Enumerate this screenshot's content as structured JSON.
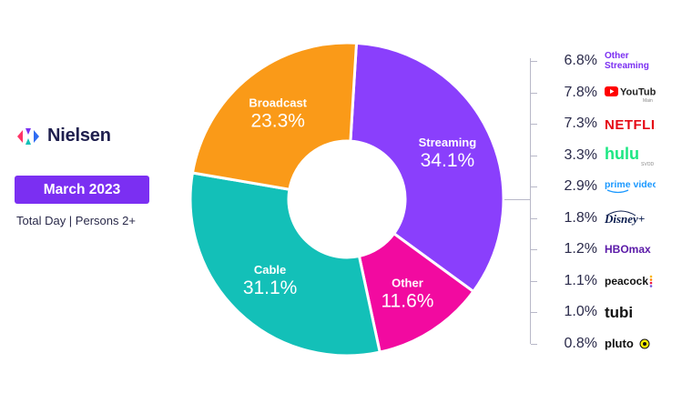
{
  "brand": {
    "name": "Nielsen"
  },
  "badge": {
    "label": "March 2023",
    "color": "#7b2ff2"
  },
  "subtitle": "Total Day | Persons 2+",
  "chart_data": {
    "type": "pie",
    "donut": true,
    "slices": [
      {
        "label": "Streaming",
        "value": 34.1,
        "display": "34.1%",
        "color": "#8a3ffc"
      },
      {
        "label": "Other",
        "value": 11.6,
        "display": "11.6%",
        "color": "#f20aa0"
      },
      {
        "label": "Cable",
        "value": 31.1,
        "display": "31.1%",
        "color": "#13c0b8"
      },
      {
        "label": "Broadcast",
        "value": 23.3,
        "display": "23.3%",
        "color": "#fa9a18"
      }
    ],
    "streaming_breakdown": [
      {
        "service": "Other Streaming",
        "value": 6.8,
        "display": "6.8%",
        "logo": "other-streaming-text"
      },
      {
        "service": "YouTube",
        "value": 7.8,
        "display": "7.8%",
        "logo": "youtube-logo",
        "logo_text": "YouTube",
        "note": "Main"
      },
      {
        "service": "Netflix",
        "value": 7.3,
        "display": "7.3%",
        "logo": "netflix-logo",
        "logo_text": "NETFLIX"
      },
      {
        "service": "Hulu",
        "value": 3.3,
        "display": "3.3%",
        "logo": "hulu-logo",
        "logo_text": "hulu",
        "note": "SVOD"
      },
      {
        "service": "Prime Video",
        "value": 2.9,
        "display": "2.9%",
        "logo": "prime-video-logo",
        "logo_text": "prime video"
      },
      {
        "service": "Disney+",
        "value": 1.8,
        "display": "1.8%",
        "logo": "disney-plus-logo",
        "logo_text": "Disney+"
      },
      {
        "service": "HBO Max",
        "value": 1.2,
        "display": "1.2%",
        "logo": "hbo-max-logo",
        "logo_text": "HBOmax"
      },
      {
        "service": "Peacock",
        "value": 1.1,
        "display": "1.1%",
        "logo": "peacock-logo",
        "logo_text": "peacock"
      },
      {
        "service": "Tubi",
        "value": 1.0,
        "display": "1.0%",
        "logo": "tubi-logo",
        "logo_text": "tubi"
      },
      {
        "service": "Pluto TV",
        "value": 0.8,
        "display": "0.8%",
        "logo": "pluto-tv-logo",
        "logo_text": "pluto"
      }
    ]
  }
}
